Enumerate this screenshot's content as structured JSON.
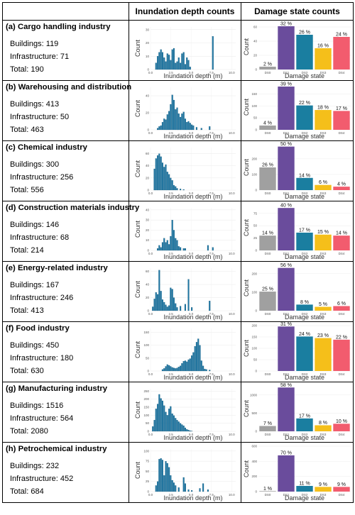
{
  "header": {
    "col1": "",
    "col2": "Inundation depth counts",
    "col3": "Damage state counts"
  },
  "labels": {
    "hist_xlabel": "Inundation depth (m)",
    "hist_ylabel": "Count",
    "dmg_xlabel": "Damage state",
    "dmg_ylabel": "Count",
    "buildings_prefix": "Buildings: ",
    "infra_prefix": "Infrastructure: ",
    "total_prefix": "Total: "
  },
  "colors": {
    "hist": "#1f77a4",
    "DS0": "#a0a0a0",
    "DS1": "#6a4c9c",
    "DS2": "#1a7ea0",
    "DS3": "#f5bf1a",
    "DS4": "#f25c6e"
  },
  "chart_data": [
    {
      "type": "bar",
      "industry": "(a) Cargo handling industry",
      "buildings": "119",
      "infrastructure": "71",
      "total": "190",
      "hist": {
        "x_ticks": [
          "0.0",
          "2.5",
          "5.0",
          "7.5",
          "10.0"
        ],
        "xlim": [
          0,
          10.5
        ],
        "y_ticks": [
          "0",
          "10",
          "20",
          "30"
        ],
        "ylim": [
          0,
          32
        ],
        "bin_width": 0.2,
        "bins": [
          [
            0.6,
            5
          ],
          [
            0.8,
            10
          ],
          [
            1.0,
            13
          ],
          [
            1.2,
            15
          ],
          [
            1.4,
            13
          ],
          [
            1.6,
            9
          ],
          [
            1.8,
            6
          ],
          [
            2.0,
            12
          ],
          [
            2.2,
            11
          ],
          [
            2.4,
            7
          ],
          [
            2.6,
            15
          ],
          [
            2.8,
            16
          ],
          [
            3.0,
            5
          ],
          [
            3.2,
            6
          ],
          [
            3.4,
            9
          ],
          [
            3.6,
            5
          ],
          [
            3.8,
            12
          ],
          [
            4.0,
            13
          ],
          [
            4.2,
            4
          ],
          [
            4.4,
            9
          ],
          [
            4.6,
            7
          ],
          [
            4.8,
            2
          ],
          [
            7.6,
            25
          ]
        ]
      },
      "damage": {
        "categories": [
          "DS0",
          "DS1",
          "DS2",
          "DS3",
          "DS4"
        ],
        "values": [
          4,
          61,
          49,
          30,
          46
        ],
        "labels": [
          "2 %",
          "32 %",
          "26 %",
          "16 %",
          "24 %"
        ],
        "ylim": [
          0,
          64
        ],
        "y_ticks": [
          "0",
          "20",
          "40",
          "60"
        ]
      }
    },
    {
      "type": "bar",
      "industry": "(b) Warehousing and distribution",
      "buildings": "413",
      "infrastructure": "50",
      "total": "463",
      "hist": {
        "x_ticks": [
          "0.0",
          "2.5",
          "5.0",
          "7.5",
          "10.0"
        ],
        "xlim": [
          0,
          10.5
        ],
        "y_ticks": [
          "0",
          "20",
          "40"
        ],
        "ylim": [
          0,
          50
        ],
        "bin_width": 0.2,
        "bins": [
          [
            0.8,
            2
          ],
          [
            1.0,
            4
          ],
          [
            1.2,
            5
          ],
          [
            1.4,
            9
          ],
          [
            1.6,
            13
          ],
          [
            1.8,
            12
          ],
          [
            2.0,
            18
          ],
          [
            2.2,
            22
          ],
          [
            2.4,
            30
          ],
          [
            2.6,
            41
          ],
          [
            2.8,
            35
          ],
          [
            3.0,
            24
          ],
          [
            3.2,
            26
          ],
          [
            3.4,
            19
          ],
          [
            3.6,
            15
          ],
          [
            3.8,
            19
          ],
          [
            4.0,
            21
          ],
          [
            4.2,
            13
          ],
          [
            4.4,
            9
          ],
          [
            4.6,
            10
          ],
          [
            4.8,
            8
          ],
          [
            5.0,
            6
          ],
          [
            5.2,
            5
          ],
          [
            5.6,
            3
          ],
          [
            6.2,
            2
          ],
          [
            7.2,
            4
          ]
        ]
      },
      "damage": {
        "categories": [
          "DS0",
          "DS1",
          "DS2",
          "DS3",
          "DS4"
        ],
        "values": [
          18,
          181,
          102,
          83,
          79
        ],
        "labels": [
          "4 %",
          "39 %",
          "22 %",
          "18 %",
          "17 %"
        ],
        "ylim": [
          0,
          190
        ],
        "y_ticks": [
          "0",
          "50",
          "100",
          "150"
        ]
      }
    },
    {
      "type": "bar",
      "industry": "(c) Chemical industry",
      "buildings": "300",
      "infrastructure": "256",
      "total": "556",
      "hist": {
        "x_ticks": [
          "0.0",
          "2.5",
          "5.0",
          "7.5",
          "10.0"
        ],
        "xlim": [
          0,
          10.5
        ],
        "y_ticks": [
          "0",
          "20",
          "40",
          "60"
        ],
        "ylim": [
          0,
          70
        ],
        "bin_width": 0.2,
        "bins": [
          [
            0.4,
            35
          ],
          [
            0.6,
            52
          ],
          [
            0.8,
            57
          ],
          [
            1.0,
            60
          ],
          [
            1.2,
            55
          ],
          [
            1.4,
            45
          ],
          [
            1.6,
            38
          ],
          [
            1.8,
            42
          ],
          [
            2.0,
            30
          ],
          [
            2.2,
            26
          ],
          [
            2.4,
            20
          ],
          [
            2.6,
            16
          ],
          [
            2.8,
            8
          ],
          [
            3.0,
            6
          ],
          [
            3.2,
            3
          ],
          [
            3.6,
            2
          ],
          [
            4.0,
            1
          ]
        ]
      },
      "damage": {
        "categories": [
          "DS0",
          "DS1",
          "DS2",
          "DS3",
          "DS4"
        ],
        "values": [
          145,
          278,
          78,
          33,
          22
        ],
        "labels": [
          "26 %",
          "50 %",
          "14 %",
          "6 %",
          "4 %"
        ],
        "ylim": [
          0,
          290
        ],
        "y_ticks": [
          "0",
          "100",
          "200"
        ]
      }
    },
    {
      "type": "bar",
      "industry": "(d) Construction materials industry",
      "buildings": "146",
      "infrastructure": "68",
      "total": "214",
      "hist": {
        "x_ticks": [
          "0.0",
          "2.5",
          "5.0",
          "7.5",
          "10.0"
        ],
        "xlim": [
          0,
          10.5
        ],
        "y_ticks": [
          "0",
          "10",
          "20",
          "30",
          "40"
        ],
        "ylim": [
          0,
          42
        ],
        "bin_width": 0.2,
        "bins": [
          [
            0.8,
            2
          ],
          [
            1.0,
            5
          ],
          [
            1.2,
            3
          ],
          [
            1.4,
            8
          ],
          [
            1.6,
            12
          ],
          [
            1.8,
            8
          ],
          [
            2.0,
            10
          ],
          [
            2.2,
            6
          ],
          [
            2.4,
            14
          ],
          [
            2.6,
            30
          ],
          [
            2.8,
            20
          ],
          [
            3.0,
            12
          ],
          [
            3.2,
            10
          ],
          [
            3.4,
            4
          ],
          [
            3.6,
            3
          ],
          [
            4.0,
            2
          ],
          [
            4.2,
            2
          ],
          [
            7.0,
            5
          ],
          [
            7.6,
            3
          ]
        ]
      },
      "damage": {
        "categories": [
          "DS0",
          "DS1",
          "DS2",
          "DS3",
          "DS4"
        ],
        "values": [
          30,
          86,
          36,
          32,
          30
        ],
        "labels": [
          "14 %",
          "40 %",
          "17 %",
          "15 %",
          "14 %"
        ],
        "ylim": [
          0,
          92
        ],
        "y_ticks": [
          "0",
          "25",
          "50",
          "75"
        ]
      }
    },
    {
      "type": "bar",
      "industry": "(e) Energy-related industry",
      "buildings": "167",
      "infrastructure": "246",
      "total": "413",
      "hist": {
        "x_ticks": [
          "0.0",
          "2.5",
          "5.0",
          "7.5",
          "10.0"
        ],
        "xlim": [
          0,
          10.5
        ],
        "y_ticks": [
          "0",
          "20",
          "40",
          "60"
        ],
        "ylim": [
          0,
          65
        ],
        "bin_width": 0.2,
        "bins": [
          [
            0.2,
            6
          ],
          [
            0.4,
            18
          ],
          [
            0.6,
            28
          ],
          [
            0.8,
            25
          ],
          [
            1.0,
            62
          ],
          [
            1.2,
            30
          ],
          [
            1.4,
            17
          ],
          [
            1.6,
            13
          ],
          [
            1.8,
            9
          ],
          [
            2.0,
            6
          ],
          [
            2.2,
            8
          ],
          [
            2.4,
            35
          ],
          [
            2.6,
            33
          ],
          [
            2.8,
            20
          ],
          [
            3.0,
            11
          ],
          [
            3.2,
            5
          ],
          [
            3.6,
            7
          ],
          [
            4.2,
            10
          ],
          [
            4.6,
            48
          ],
          [
            5.0,
            5
          ],
          [
            7.2,
            15
          ]
        ]
      },
      "damage": {
        "categories": [
          "DS0",
          "DS1",
          "DS2",
          "DS3",
          "DS4"
        ],
        "values": [
          103,
          231,
          33,
          21,
          25
        ],
        "labels": [
          "25 %",
          "56 %",
          "8 %",
          "5 %",
          "6 %"
        ],
        "ylim": [
          0,
          245
        ],
        "y_ticks": [
          "0",
          "100",
          "200"
        ]
      }
    },
    {
      "type": "bar",
      "industry": "(f) Food industry",
      "buildings": "450",
      "infrastructure": "180",
      "total": "630",
      "hist": {
        "x_ticks": [
          "0.0",
          "2.5",
          "5.0",
          "7.5",
          "10.0"
        ],
        "xlim": [
          0,
          10.5
        ],
        "y_ticks": [
          "0",
          "50",
          "100",
          "150"
        ],
        "ylim": [
          0,
          165
        ],
        "bin_width": 0.2,
        "bins": [
          [
            1.4,
            6
          ],
          [
            1.6,
            10
          ],
          [
            1.8,
            18
          ],
          [
            2.0,
            25
          ],
          [
            2.2,
            22
          ],
          [
            2.4,
            18
          ],
          [
            2.6,
            14
          ],
          [
            2.8,
            12
          ],
          [
            3.0,
            10
          ],
          [
            3.2,
            12
          ],
          [
            3.4,
            16
          ],
          [
            3.6,
            20
          ],
          [
            3.8,
            30
          ],
          [
            4.0,
            38
          ],
          [
            4.2,
            40
          ],
          [
            4.4,
            36
          ],
          [
            4.6,
            44
          ],
          [
            4.8,
            48
          ],
          [
            5.0,
            60
          ],
          [
            5.2,
            72
          ],
          [
            5.4,
            96
          ],
          [
            5.6,
            112
          ],
          [
            5.8,
            125
          ],
          [
            6.0,
            100
          ],
          [
            6.2,
            40
          ],
          [
            6.4,
            20
          ],
          [
            6.6,
            8
          ],
          [
            6.8,
            6
          ],
          [
            7.2,
            4
          ]
        ]
      },
      "damage": {
        "categories": [
          "DS0",
          "DS1",
          "DS2",
          "DS3",
          "DS4"
        ],
        "values": [
          0,
          196,
          152,
          145,
          138
        ],
        "labels": [
          "",
          "31 %",
          "24 %",
          "23 %",
          "22 %"
        ],
        "ylim": [
          0,
          200
        ],
        "y_ticks": [
          "0",
          "50",
          "100",
          "150",
          "200"
        ]
      }
    },
    {
      "type": "bar",
      "industry": "(g) Manufacturing industry",
      "buildings": "1516",
      "infrastructure": "564",
      "total": "2080",
      "hist": {
        "x_ticks": [
          "0.0",
          "2.5",
          "5.0",
          "7.5",
          "10.0"
        ],
        "xlim": [
          0,
          10.5
        ],
        "y_ticks": [
          "0",
          "50",
          "100",
          "150",
          "200",
          "250"
        ],
        "ylim": [
          0,
          265
        ],
        "bin_width": 0.2,
        "bins": [
          [
            0.2,
            30
          ],
          [
            0.4,
            70
          ],
          [
            0.6,
            140
          ],
          [
            0.8,
            170
          ],
          [
            1.0,
            230
          ],
          [
            1.2,
            205
          ],
          [
            1.4,
            190
          ],
          [
            1.6,
            160
          ],
          [
            1.8,
            120
          ],
          [
            2.0,
            100
          ],
          [
            2.2,
            140
          ],
          [
            2.4,
            155
          ],
          [
            2.6,
            110
          ],
          [
            2.8,
            98
          ],
          [
            3.0,
            82
          ],
          [
            3.2,
            70
          ],
          [
            3.4,
            60
          ],
          [
            3.6,
            50
          ],
          [
            3.8,
            42
          ],
          [
            4.0,
            35
          ],
          [
            4.2,
            22
          ],
          [
            4.4,
            12
          ],
          [
            4.6,
            8
          ],
          [
            4.8,
            4
          ],
          [
            5.0,
            2
          ]
        ]
      },
      "damage": {
        "categories": [
          "DS0",
          "DS1",
          "DS2",
          "DS3",
          "DS4"
        ],
        "values": [
          146,
          1206,
          354,
          166,
          208
        ],
        "labels": [
          "7 %",
          "58 %",
          "17 %",
          "8 %",
          "10 %"
        ],
        "ylim": [
          0,
          1250
        ],
        "y_ticks": [
          "0",
          "500",
          "1000"
        ]
      }
    },
    {
      "type": "bar",
      "industry": "(h) Petrochemical industry",
      "buildings": "232",
      "infrastructure": "452",
      "total": "684",
      "hist": {
        "x_ticks": [
          "0.0",
          "2.5",
          "5.0",
          "7.5",
          "10.0"
        ],
        "xlim": [
          0,
          10.5
        ],
        "y_ticks": [
          "0",
          "25",
          "50",
          "75",
          "100"
        ],
        "ylim": [
          0,
          105
        ],
        "bin_width": 0.2,
        "bins": [
          [
            0.6,
            15
          ],
          [
            0.8,
            25
          ],
          [
            1.0,
            80
          ],
          [
            1.2,
            82
          ],
          [
            1.4,
            78
          ],
          [
            1.6,
            40
          ],
          [
            1.8,
            75
          ],
          [
            2.0,
            70
          ],
          [
            2.2,
            60
          ],
          [
            2.4,
            40
          ],
          [
            2.6,
            28
          ],
          [
            2.8,
            22
          ],
          [
            3.0,
            15
          ],
          [
            3.4,
            10
          ],
          [
            4.0,
            35
          ],
          [
            4.2,
            20
          ],
          [
            4.6,
            5
          ],
          [
            5.0,
            3
          ],
          [
            6.0,
            8
          ],
          [
            6.4,
            20
          ],
          [
            7.0,
            5
          ]
        ]
      },
      "damage": {
        "categories": [
          "DS0",
          "DS1",
          "DS2",
          "DS3",
          "DS4"
        ],
        "values": [
          7,
          479,
          75,
          62,
          62
        ],
        "labels": [
          "1 %",
          "70 %",
          "11 %",
          "9 %",
          "9 %"
        ],
        "ylim": [
          0,
          600
        ],
        "y_ticks": [
          "0",
          "200",
          "400",
          "600"
        ]
      }
    }
  ]
}
